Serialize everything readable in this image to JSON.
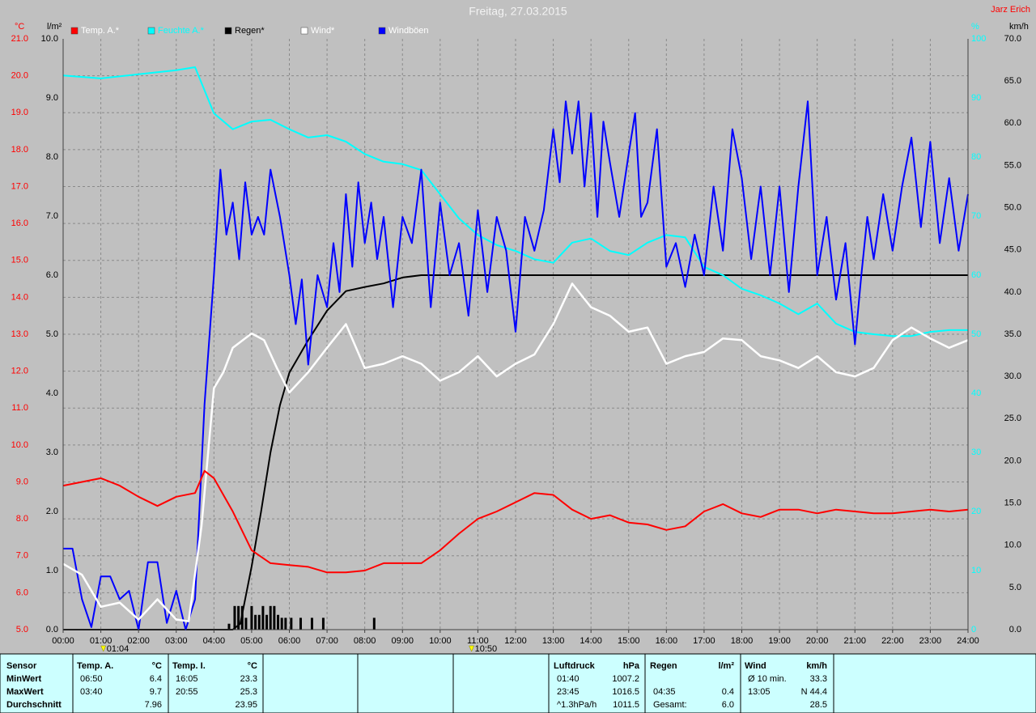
{
  "chart_data": {
    "type": "line",
    "title": "Freitag, 27.03.2015",
    "author": "Jarz Erich",
    "grid": true,
    "xlim": [
      0,
      24
    ],
    "xticks": [
      {
        "value": 0,
        "label": "00:00"
      },
      {
        "value": 1,
        "label": "01:00"
      },
      {
        "value": 2,
        "label": "02:00"
      },
      {
        "value": 3,
        "label": "03:00"
      },
      {
        "value": 4,
        "label": "04:00"
      },
      {
        "value": 5,
        "label": "05:00"
      },
      {
        "value": 6,
        "label": "06:00"
      },
      {
        "value": 7,
        "label": "07:00"
      },
      {
        "value": 8,
        "label": "08:00"
      },
      {
        "value": 9,
        "label": "09:00"
      },
      {
        "value": 10,
        "label": "10:00"
      },
      {
        "value": 11,
        "label": "11:00"
      },
      {
        "value": 12,
        "label": "12:00"
      },
      {
        "value": 13,
        "label": "13:00"
      },
      {
        "value": 14,
        "label": "14:00"
      },
      {
        "value": 15,
        "label": "15:00"
      },
      {
        "value": 16,
        "label": "16:00"
      },
      {
        "value": 17,
        "label": "17:00"
      },
      {
        "value": 18,
        "label": "18:00"
      },
      {
        "value": 19,
        "label": "19:00"
      },
      {
        "value": 20,
        "label": "20:00"
      },
      {
        "value": 21,
        "label": "21:00"
      },
      {
        "value": 22,
        "label": "22:00"
      },
      {
        "value": 23,
        "label": "23:00"
      },
      {
        "value": 24,
        "label": "24:00"
      }
    ],
    "markers": [
      {
        "x": 1.067,
        "label": "01:04"
      },
      {
        "x": 10.833,
        "label": "10:50"
      }
    ],
    "axes": [
      {
        "unit": "°C",
        "color": "#ff0000",
        "lim": [
          5,
          21
        ],
        "ticks": [
          {
            "value": 5,
            "label": "5.0"
          },
          {
            "value": 6,
            "label": "6.0"
          },
          {
            "value": 7,
            "label": "7.0"
          },
          {
            "value": 8,
            "label": "8.0"
          },
          {
            "value": 9,
            "label": "9.0"
          },
          {
            "value": 10,
            "label": "10.0"
          },
          {
            "value": 11,
            "label": "11.0"
          },
          {
            "value": 12,
            "label": "12.0"
          },
          {
            "value": 13,
            "label": "13.0"
          },
          {
            "value": 14,
            "label": "14.0"
          },
          {
            "value": 15,
            "label": "15.0"
          },
          {
            "value": 16,
            "label": "16.0"
          },
          {
            "value": 17,
            "label": "17.0"
          },
          {
            "value": 18,
            "label": "18.0"
          },
          {
            "value": 19,
            "label": "19.0"
          },
          {
            "value": 20,
            "label": "20.0"
          },
          {
            "value": 21,
            "label": "21.0"
          }
        ]
      },
      {
        "unit": "l/m²",
        "color": "#000000",
        "lim": [
          0,
          10
        ],
        "ticks": [
          {
            "value": 0,
            "label": "0.0"
          },
          {
            "value": 1,
            "label": "1.0"
          },
          {
            "value": 2,
            "label": "2.0"
          },
          {
            "value": 3,
            "label": "3.0"
          },
          {
            "value": 4,
            "label": "4.0"
          },
          {
            "value": 5,
            "label": "5.0"
          },
          {
            "value": 6,
            "label": "6.0"
          },
          {
            "value": 7,
            "label": "7.0"
          },
          {
            "value": 8,
            "label": "8.0"
          },
          {
            "value": 9,
            "label": "9.0"
          },
          {
            "value": 10,
            "label": "10.0"
          }
        ]
      },
      {
        "unit": "%",
        "color": "#00ffff",
        "lim": [
          0,
          100
        ],
        "ticks": [
          0,
          10,
          20,
          30,
          40,
          50,
          60,
          70,
          80,
          90,
          100
        ]
      },
      {
        "unit": "km/h",
        "color": "#000000",
        "lim": [
          0,
          70
        ],
        "ticks": [
          {
            "value": 0,
            "label": "0.0"
          },
          {
            "value": 5,
            "label": "5.0"
          },
          {
            "value": 10,
            "label": "10.0"
          },
          {
            "value": 15,
            "label": "15.0"
          },
          {
            "value": 20,
            "label": "20.0"
          },
          {
            "value": 25,
            "label": "25.0"
          },
          {
            "value": 30,
            "label": "30.0"
          },
          {
            "value": 35,
            "label": "35.0"
          },
          {
            "value": 40,
            "label": "40.0"
          },
          {
            "value": 45,
            "label": "45.0"
          },
          {
            "value": 50,
            "label": "50.0"
          },
          {
            "value": 55,
            "label": "55.0"
          },
          {
            "value": 60,
            "label": "60.0"
          },
          {
            "value": 65,
            "label": "65.0"
          },
          {
            "value": 70,
            "label": "70.0"
          }
        ]
      }
    ],
    "series": [
      {
        "name": "Temp. A.*",
        "color": "#ff0000",
        "axis": 0,
        "x": [
          0,
          0.5,
          1,
          1.5,
          2,
          2.5,
          3,
          3.5,
          3.75,
          4,
          4.5,
          5,
          5.5,
          6,
          6.5,
          7,
          7.5,
          8,
          8.5,
          9,
          9.5,
          10,
          10.5,
          11,
          11.5,
          12,
          12.5,
          13,
          13.5,
          14,
          14.5,
          15,
          15.5,
          16,
          16.5,
          17,
          17.5,
          18,
          18.5,
          19,
          19.5,
          20,
          20.5,
          21,
          21.5,
          22,
          22.5,
          23,
          23.5,
          24
        ],
        "values": [
          8.9,
          9.0,
          9.1,
          8.9,
          8.6,
          8.35,
          8.6,
          8.7,
          9.3,
          9.1,
          8.2,
          7.15,
          6.8,
          6.75,
          6.7,
          6.55,
          6.55,
          6.6,
          6.8,
          6.8,
          6.8,
          7.15,
          7.6,
          8.0,
          8.2,
          8.45,
          8.7,
          8.65,
          8.25,
          8.0,
          8.1,
          7.9,
          7.85,
          7.7,
          7.8,
          8.2,
          8.4,
          8.15,
          8.05,
          8.25,
          8.25,
          8.15,
          8.25,
          8.2,
          8.15,
          8.15,
          8.2,
          8.25,
          8.2,
          8.25
        ]
      },
      {
        "name": "Feuchte A.*",
        "color": "#00ffff",
        "axis": 2,
        "x": [
          0,
          1,
          2,
          3,
          3.5,
          4,
          4.5,
          5,
          5.5,
          6,
          6.5,
          7,
          7.5,
          8,
          8.5,
          9,
          9.5,
          10,
          10.5,
          11,
          11.5,
          12,
          12.5,
          13,
          13.5,
          14,
          14.5,
          15,
          15.5,
          16,
          16.5,
          17,
          17.5,
          18,
          18.5,
          19,
          19.5,
          20,
          20.5,
          21,
          21.5,
          22,
          22.5,
          23,
          23.5,
          24
        ],
        "values": [
          93.8,
          93.3,
          94,
          94.7,
          95.2,
          87.4,
          84.7,
          86,
          86.3,
          84.7,
          83.3,
          83.7,
          82.6,
          80.5,
          79.2,
          78.8,
          77.8,
          73.7,
          69.6,
          66.8,
          65.1,
          64.1,
          62.7,
          62.1,
          65.5,
          66.2,
          64.1,
          63.4,
          65.5,
          66.8,
          66.4,
          61.4,
          60,
          57.7,
          56.6,
          55.2,
          53.4,
          55.2,
          51.8,
          50.4,
          50,
          49.7,
          49.7,
          50.4,
          50.7,
          50.7
        ]
      },
      {
        "name": "Regen*",
        "color": "#000000",
        "axis": 1,
        "x": [
          0,
          4.5,
          4.7,
          5,
          5.25,
          5.5,
          5.75,
          6,
          6.5,
          7,
          7.5,
          8,
          8.5,
          9,
          9.5,
          24
        ],
        "values": [
          0,
          0,
          0.1,
          1.07,
          2.0,
          3.0,
          3.8,
          4.35,
          4.9,
          5.4,
          5.73,
          5.8,
          5.86,
          5.96,
          6.0,
          6.0
        ],
        "bars": {
          "x": [
            4.4,
            4.55,
            4.65,
            4.75,
            4.85,
            5.0,
            5.1,
            5.2,
            5.3,
            5.4,
            5.5,
            5.6,
            5.7,
            5.8,
            5.9,
            6.05,
            6.3,
            6.6,
            6.9,
            8.25
          ],
          "values": [
            0.1,
            0.4,
            0.4,
            0.4,
            0.2,
            0.4,
            0.25,
            0.25,
            0.4,
            0.25,
            0.4,
            0.4,
            0.25,
            0.2,
            0.2,
            0.2,
            0.2,
            0.2,
            0.2,
            0.2
          ]
        }
      },
      {
        "name": "Wind*",
        "color": "#ffffff",
        "axis": 3,
        "x": [
          0,
          0.5,
          1,
          1.5,
          2,
          2.5,
          3,
          3.33,
          3.67,
          4,
          4.25,
          4.5,
          5,
          5.33,
          5.67,
          6,
          6.5,
          7,
          7.5,
          8,
          8.5,
          9,
          9.5,
          10,
          10.5,
          11,
          11.5,
          12,
          12.5,
          13,
          13.5,
          14,
          14.5,
          15,
          15.5,
          16,
          16.5,
          17,
          17.5,
          18,
          18.5,
          19,
          19.5,
          20,
          20.5,
          21,
          21.5,
          22,
          22.5,
          23,
          23.5,
          24
        ],
        "values": [
          7.8,
          6.5,
          2.7,
          3.2,
          1.2,
          3.6,
          1.2,
          1.0,
          12.3,
          28.6,
          30.5,
          33.4,
          35.1,
          34.3,
          31.0,
          28.1,
          30.5,
          33.4,
          36.2,
          31,
          31.5,
          32.4,
          31.5,
          29.5,
          30.5,
          32.4,
          30,
          31.5,
          32.6,
          36.2,
          41,
          38.2,
          37.2,
          35.3,
          35.8,
          31.5,
          32.4,
          32.9,
          34.5,
          34.3,
          32.4,
          31.9,
          31,
          32.4,
          30.5,
          30,
          31,
          34.3,
          35.8,
          34.5,
          33.4,
          34.3
        ]
      },
      {
        "name": "Windböen",
        "color": "#0000ff",
        "axis": 3,
        "x": [
          0,
          0.25,
          0.5,
          0.75,
          1,
          1.25,
          1.5,
          1.75,
          2,
          2.25,
          2.5,
          2.75,
          3,
          3.25,
          3.5,
          3.75,
          4,
          4.17,
          4.33,
          4.5,
          4.67,
          4.83,
          5,
          5.17,
          5.33,
          5.5,
          5.75,
          6,
          6.17,
          6.33,
          6.5,
          6.75,
          7,
          7.17,
          7.33,
          7.5,
          7.67,
          7.83,
          8,
          8.17,
          8.33,
          8.5,
          8.75,
          9,
          9.25,
          9.5,
          9.75,
          10,
          10.25,
          10.5,
          10.75,
          11,
          11.25,
          11.5,
          11.75,
          12,
          12.25,
          12.5,
          12.75,
          13,
          13.17,
          13.33,
          13.5,
          13.67,
          13.83,
          14,
          14.17,
          14.33,
          14.5,
          14.75,
          15,
          15.17,
          15.33,
          15.5,
          15.75,
          16,
          16.25,
          16.5,
          16.75,
          17,
          17.25,
          17.5,
          17.75,
          18,
          18.25,
          18.5,
          18.75,
          19,
          19.25,
          19.5,
          19.75,
          20,
          20.25,
          20.5,
          20.75,
          21,
          21.17,
          21.33,
          21.5,
          21.75,
          22,
          22.25,
          22.5,
          22.75,
          23,
          23.25,
          23.5,
          23.75,
          24
        ],
        "values": [
          9.6,
          9.6,
          3.6,
          0.3,
          6.3,
          6.3,
          3.6,
          4.6,
          0,
          8,
          8,
          0.8,
          4.6,
          0,
          3.6,
          26.7,
          42,
          54.5,
          46.8,
          50.6,
          43.9,
          53,
          46.8,
          48.9,
          46.8,
          54.5,
          48.9,
          42,
          36.2,
          41.5,
          31.4,
          42,
          38.2,
          45.8,
          40,
          51.6,
          43,
          53,
          45.8,
          50.6,
          43.9,
          48.9,
          38.2,
          48.9,
          45.8,
          54.5,
          38.2,
          50.6,
          42,
          45.8,
          37.2,
          49.7,
          40,
          48.9,
          44.9,
          35.3,
          48.9,
          44.9,
          49.7,
          59.3,
          53,
          62.6,
          56.4,
          62.6,
          52.5,
          61.2,
          48.9,
          60.2,
          55.4,
          48.9,
          56.4,
          61.2,
          48.9,
          50.6,
          59.3,
          43,
          45.8,
          40.6,
          46.8,
          42,
          52.5,
          44.9,
          59.3,
          53.5,
          43.9,
          52.5,
          42,
          52.5,
          40,
          52.5,
          62.6,
          42,
          48.9,
          39.1,
          45.8,
          33.8,
          42,
          48.9,
          43.9,
          51.6,
          44.9,
          52.5,
          58.3,
          47.7,
          57.8,
          45.8,
          53.5,
          44.9,
          51.6
        ]
      }
    ]
  },
  "table": {
    "columns": [
      {
        "header": "Sensor",
        "cells": [
          "MinWert",
          "MaxWert",
          "Durchschnitt"
        ]
      },
      {
        "header": "Temp. A.",
        "unit": "°C",
        "cells": [
          [
            "06:50",
            "6.4"
          ],
          [
            "03:40",
            "9.7"
          ],
          [
            null,
            "7.96"
          ]
        ]
      },
      {
        "header": "Temp. I.",
        "unit": "°C",
        "cells": [
          [
            "16:05",
            "23.3"
          ],
          [
            "20:55",
            "25.3"
          ],
          [
            null,
            "23.95"
          ]
        ]
      },
      {
        "header": "Luftdruck",
        "unit": "hPa",
        "cells": [
          [
            "01:40",
            "1007.2"
          ],
          [
            "23:45",
            "1016.5"
          ],
          [
            "^1.3hPa/h",
            "1011.5"
          ]
        ]
      },
      {
        "header": "Regen",
        "unit": "l/m²",
        "cells": [
          [
            null,
            null
          ],
          [
            "04:35",
            "0.4"
          ],
          [
            "Gesamt:",
            "6.0"
          ]
        ]
      },
      {
        "header": "Wind",
        "unit": "km/h",
        "cells": [
          [
            "Ø 10 min.",
            "33.3"
          ],
          [
            "13:05",
            "N 44.4"
          ],
          [
            null,
            "28.5"
          ]
        ]
      }
    ]
  }
}
